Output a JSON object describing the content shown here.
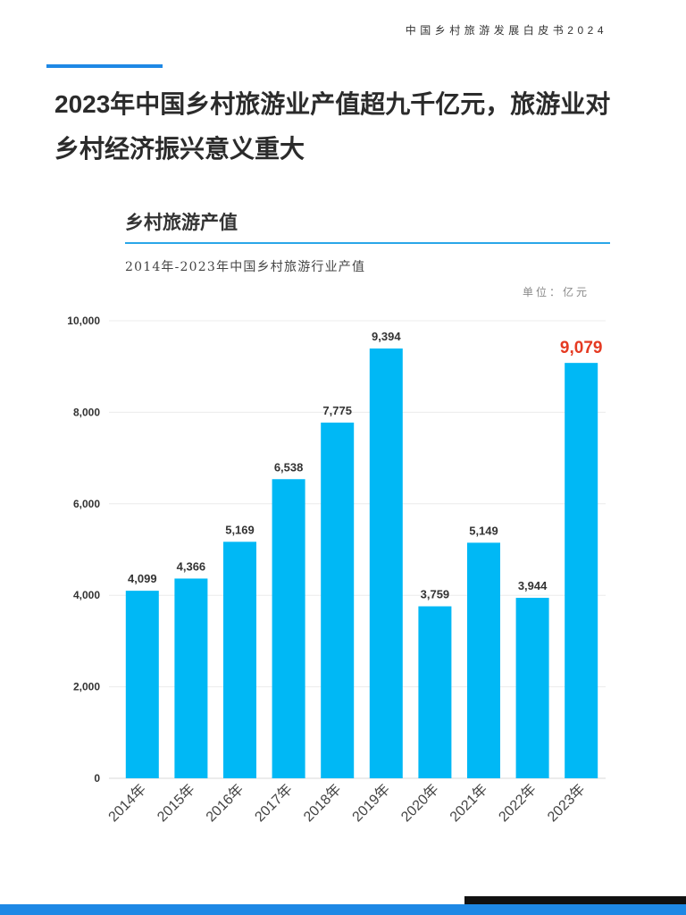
{
  "header": {
    "report_name": "中国乡村旅游发展白皮书2024"
  },
  "page": {
    "title_lines": [
      "2023年中国乡村旅游业产值超九千亿元，旅游业对",
      "乡村经济振兴意义重大"
    ]
  },
  "colors": {
    "accent_blue": "#1e88e5",
    "section_rule": "#2aa6e8",
    "footer_blue": "#1e88e5",
    "footer_black": "#111111"
  },
  "chart_data": {
    "type": "bar",
    "title": "乡村旅游产值",
    "subtitle": "2014年-2023年中国乡村旅游行业产值",
    "unit": "单位：亿元",
    "categories": [
      "2014年",
      "2015年",
      "2016年",
      "2017年",
      "2018年",
      "2019年",
      "2020年",
      "2021年",
      "2022年",
      "2023年"
    ],
    "values": [
      4099,
      4366,
      5169,
      6538,
      7775,
      9394,
      3759,
      5149,
      3944,
      9079
    ],
    "data_labels": [
      "4,099",
      "4,366",
      "5,169",
      "6,538",
      "7,775",
      "9,394",
      "3,759",
      "5,149",
      "3,944",
      "9,079"
    ],
    "ylim": [
      0,
      10000
    ],
    "yticks": [
      0,
      2000,
      4000,
      6000,
      8000,
      10000
    ],
    "ytick_labels": [
      "0",
      "2,000",
      "4,000",
      "6,000",
      "8,000",
      "10,000"
    ],
    "grid": true,
    "highlight_index": 9,
    "colors": {
      "bar": "#00b8f5",
      "label": "#333333",
      "highlight_label": "#e53a22",
      "gridline": "#ececec",
      "baseline": "#d9d9d9"
    }
  }
}
